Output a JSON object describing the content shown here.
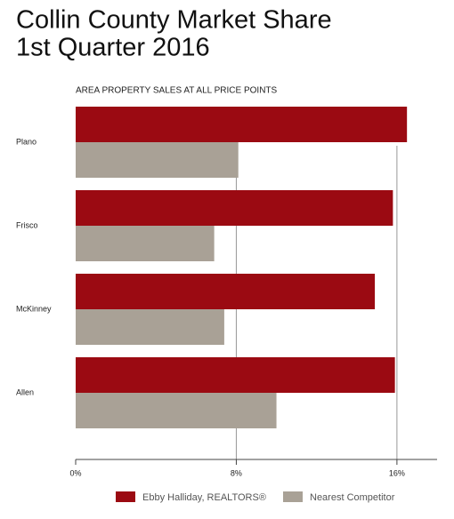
{
  "chart_data": {
    "type": "bar",
    "orientation": "horizontal",
    "title": [
      "Collin County Market Share",
      "1st Quarter 2016"
    ],
    "subtitle": "AREA PROPERTY SALES AT ALL PRICE POINTS",
    "categories": [
      "Plano",
      "Frisco",
      "McKinney",
      "Allen"
    ],
    "series": [
      {
        "name": "Ebby Halliday, REALTORS®",
        "color": "#9b0a12",
        "values": [
          16.5,
          15.8,
          14.9,
          15.9
        ]
      },
      {
        "name": "Nearest Competitor",
        "color": "#a9a196",
        "values": [
          8.1,
          6.9,
          7.4,
          10.0
        ]
      }
    ],
    "xlim": [
      0,
      18
    ],
    "xticks": [
      {
        "value": 0,
        "label": "0%"
      },
      {
        "value": 8,
        "label": "8%"
      },
      {
        "value": 16,
        "label": "16%"
      }
    ],
    "grid": true
  }
}
